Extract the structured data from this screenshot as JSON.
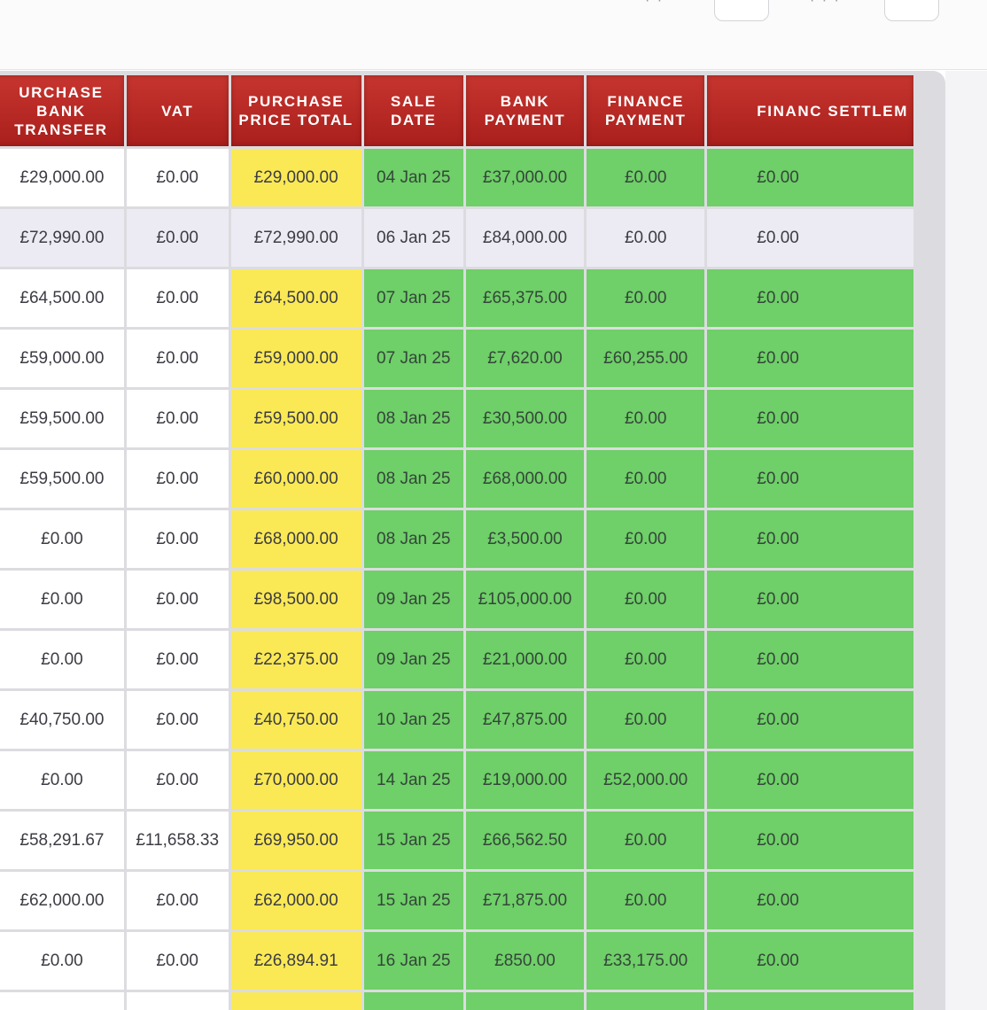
{
  "topbar": {
    "frag_left": "· ·",
    "frag_right": "· · ·"
  },
  "table": {
    "headers": [
      "URCHASE BANK TRANSFER",
      "VAT",
      "PURCHASE PRICE TOTAL",
      "SALE DATE",
      "BANK PAYMENT",
      "FINANCE PAYMENT",
      "FINANC SETTLEM"
    ],
    "rows": [
      {
        "style": "normal",
        "cells": [
          "£29,000.00",
          "£0.00",
          "£29,000.00",
          "04 Jan 25",
          "£37,000.00",
          "£0.00",
          "£0.00"
        ]
      },
      {
        "style": "alt",
        "cells": [
          "£72,990.00",
          "£0.00",
          "£72,990.00",
          "06 Jan 25",
          "£84,000.00",
          "£0.00",
          "£0.00"
        ]
      },
      {
        "style": "normal",
        "cells": [
          "£64,500.00",
          "£0.00",
          "£64,500.00",
          "07 Jan 25",
          "£65,375.00",
          "£0.00",
          "£0.00"
        ]
      },
      {
        "style": "normal",
        "cells": [
          "£59,000.00",
          "£0.00",
          "£59,000.00",
          "07 Jan 25",
          "£7,620.00",
          "£60,255.00",
          "£0.00"
        ]
      },
      {
        "style": "normal",
        "cells": [
          "£59,500.00",
          "£0.00",
          "£59,500.00",
          "08 Jan 25",
          "£30,500.00",
          "£0.00",
          "£0.00"
        ]
      },
      {
        "style": "normal",
        "cells": [
          "£59,500.00",
          "£0.00",
          "£60,000.00",
          "08 Jan 25",
          "£68,000.00",
          "£0.00",
          "£0.00"
        ]
      },
      {
        "style": "normal",
        "cells": [
          "£0.00",
          "£0.00",
          "£68,000.00",
          "08 Jan 25",
          "£3,500.00",
          "£0.00",
          "£0.00"
        ]
      },
      {
        "style": "normal",
        "cells": [
          "£0.00",
          "£0.00",
          "£98,500.00",
          "09 Jan 25",
          "£105,000.00",
          "£0.00",
          "£0.00"
        ]
      },
      {
        "style": "normal",
        "cells": [
          "£0.00",
          "£0.00",
          "£22,375.00",
          "09 Jan 25",
          "£21,000.00",
          "£0.00",
          "£0.00"
        ]
      },
      {
        "style": "normal",
        "cells": [
          "£40,750.00",
          "£0.00",
          "£40,750.00",
          "10 Jan 25",
          "£47,875.00",
          "£0.00",
          "£0.00"
        ]
      },
      {
        "style": "normal",
        "cells": [
          "£0.00",
          "£0.00",
          "£70,000.00",
          "14 Jan 25",
          "£19,000.00",
          "£52,000.00",
          "£0.00"
        ]
      },
      {
        "style": "normal",
        "cells": [
          "£58,291.67",
          "£11,658.33",
          "£69,950.00",
          "15 Jan 25",
          "£66,562.50",
          "£0.00",
          "£0.00"
        ]
      },
      {
        "style": "normal",
        "cells": [
          "£62,000.00",
          "£0.00",
          "£62,000.00",
          "15 Jan 25",
          "£71,875.00",
          "£0.00",
          "£0.00"
        ]
      },
      {
        "style": "normal",
        "cells": [
          "£0.00",
          "£0.00",
          "£26,894.91",
          "16 Jan 25",
          "£850.00",
          "£33,175.00",
          "£0.00"
        ]
      },
      {
        "style": "normal",
        "cells": [
          "",
          "",
          "",
          "",
          "",
          "",
          ""
        ]
      }
    ]
  },
  "colors": {
    "header_red": "#b8282a",
    "price_yellow": "#fae955",
    "sale_green": "#6fcf68",
    "alt_row": "#ecebf4"
  }
}
